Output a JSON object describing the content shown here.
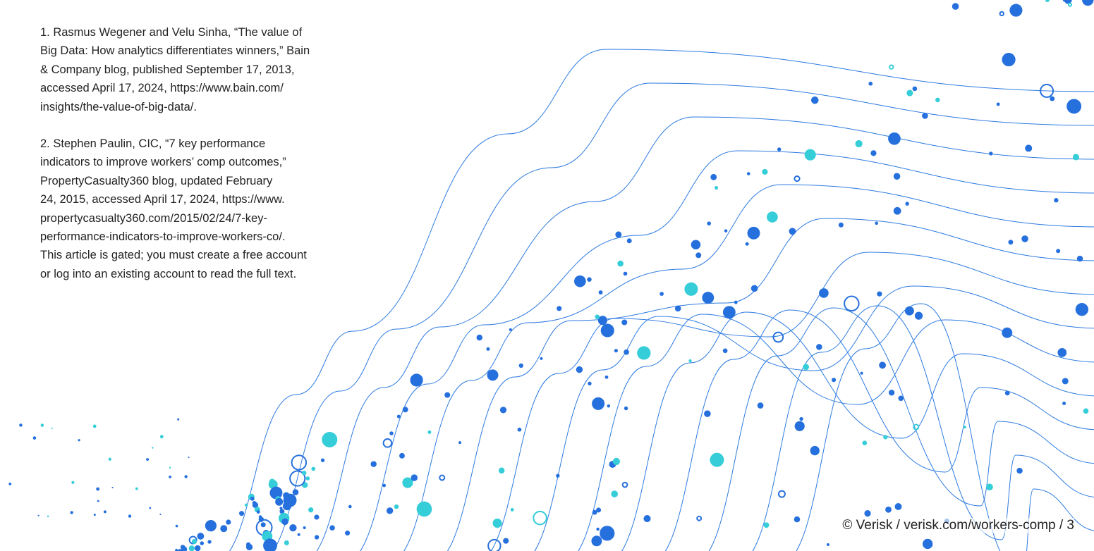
{
  "footnotes": [
    {
      "lines": [
        "1. Rasmus Wegener and Velu Sinha, “The value of",
        "Big Data: How analytics differentiates winners,” Bain",
        "& Company blog, published September 17, 2013,",
        "accessed April 17, 2024, https://www.bain.com/",
        "insights/the-value-of-big-data/."
      ]
    },
    {
      "lines": [
        "2. Stephen Paulin, CIC, “7 key performance",
        "indicators to improve workers’ comp outcomes,”",
        "PropertyCasualty360 blog, updated February",
        "24, 2015, accessed April 17, 2024, https://www.",
        "propertycasualty360.com/2015/02/24/7-key-",
        "performance-indicators-to-improve-workers-co/.",
        "This article is gated; you must create a free account",
        "or log into an existing account to read the full text."
      ]
    }
  ],
  "footer": "© Verisk / verisk.com/workers-comp / 3"
}
